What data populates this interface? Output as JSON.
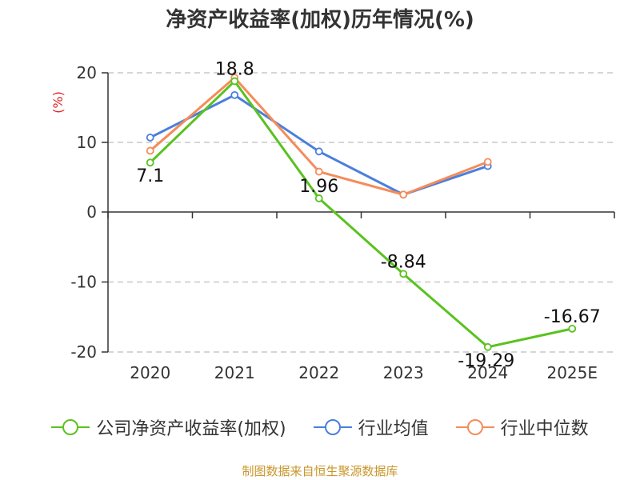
{
  "title": "净资产收益率(加权)历年情况(%)",
  "footer": "制图数据来自恒生聚源数据库",
  "chart_data": {
    "type": "line",
    "title": "净资产收益率(加权)历年情况(%)",
    "ylabel": "(%)",
    "xlabel": "",
    "categories": [
      "2020",
      "2021",
      "2022",
      "2023",
      "2024",
      "2025E"
    ],
    "ylim": [
      -20,
      20
    ],
    "yticks": [
      20,
      10,
      0,
      -10,
      -20
    ],
    "grid": true,
    "legend_position": "bottom",
    "series": [
      {
        "name": "公司净资产收益率(加权)",
        "color": "#5ac21f",
        "values": [
          7.1,
          18.8,
          1.96,
          -8.84,
          -19.29,
          -16.67
        ],
        "labels": [
          "7.1",
          "18.8",
          "1.96",
          "-8.84",
          "-19.29",
          "-16.67"
        ]
      },
      {
        "name": "行业均值",
        "color": "#4a7fdc",
        "values": [
          10.7,
          16.8,
          8.7,
          2.5,
          6.6,
          null
        ]
      },
      {
        "name": "行业中位数",
        "color": "#f58c5a",
        "values": [
          8.8,
          19.3,
          5.8,
          2.5,
          7.2,
          null
        ]
      }
    ]
  }
}
